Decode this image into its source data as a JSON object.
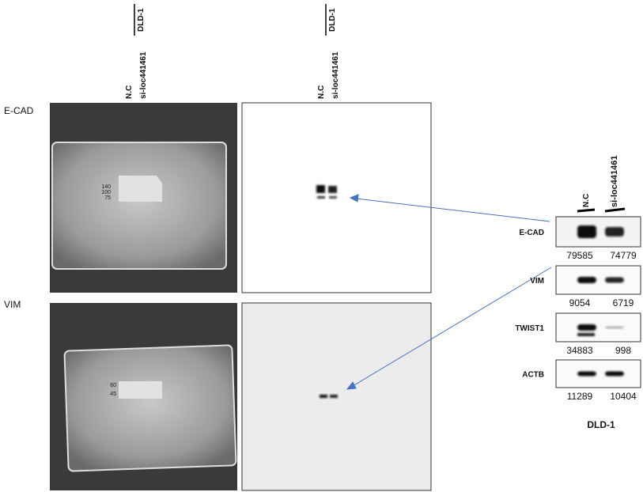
{
  "left_headers": [
    {
      "group": "DLD-1",
      "lanes": [
        "N.C",
        "si-loc441461"
      ]
    },
    {
      "group": "DLD-1",
      "lanes": [
        "N.C",
        "si-loc441461"
      ]
    }
  ],
  "rows": [
    {
      "label": "E-CAD",
      "markers": [
        "140",
        "100",
        "75"
      ]
    },
    {
      "label": "VIM",
      "markers": [
        "60",
        "45"
      ]
    }
  ],
  "right_lanes": [
    "N.C",
    "si-loc441461"
  ],
  "blots": [
    {
      "label": "E-CAD",
      "values": [
        79585,
        74779
      ]
    },
    {
      "label": "VIM",
      "values": [
        9054,
        6719
      ]
    },
    {
      "label": "TWIST1",
      "values": [
        34883,
        998
      ]
    },
    {
      "label": "ACTB",
      "values": [
        11289,
        10404
      ]
    }
  ],
  "footer": "DLD-1"
}
